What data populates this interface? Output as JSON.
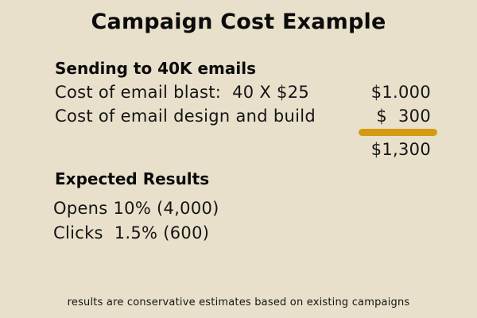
{
  "title": "Campaign Cost Example",
  "sending": {
    "heading": "Sending to 40K emails",
    "rows": [
      {
        "label": "Cost of email blast:  40 X $25",
        "amount": "$1.000"
      },
      {
        "label": "Cost of email design and build",
        "amount": "$  300"
      }
    ],
    "total": "$1,300"
  },
  "results": {
    "heading": "Expected Results",
    "items": [
      "Opens 10% (4,000)",
      "Clicks  1.5% (600)"
    ]
  },
  "footnote": "results are conservative estimates based on existing campaigns",
  "colors": {
    "background": "#e8e0cb",
    "underline": "#d49a12"
  }
}
